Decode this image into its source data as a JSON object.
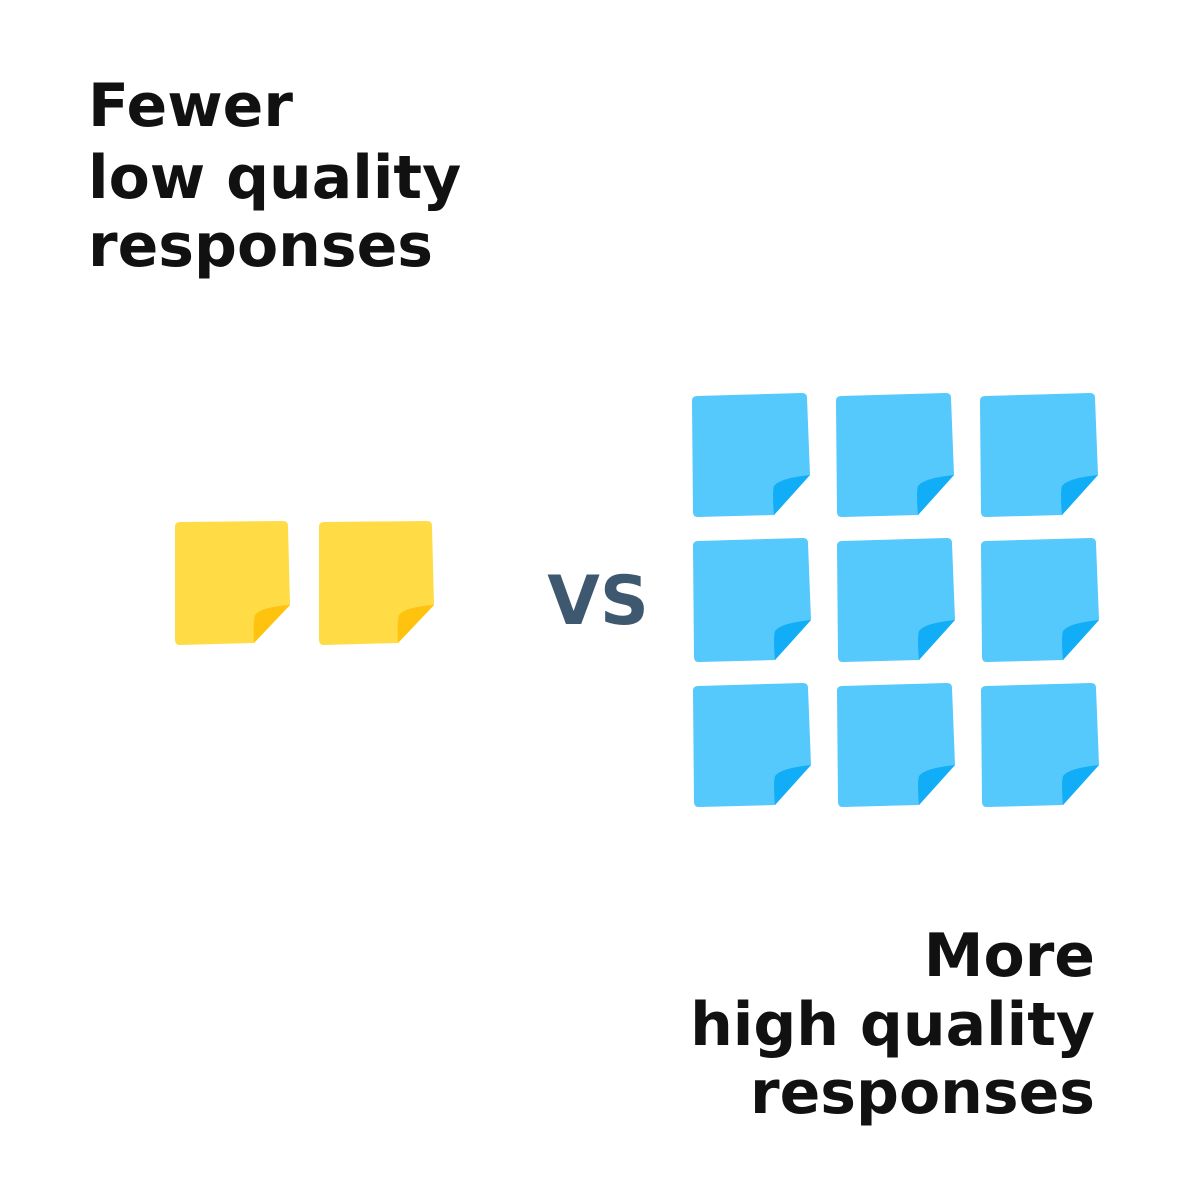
{
  "left_label": {
    "lines": [
      "Fewer",
      "low quality",
      "responses"
    ]
  },
  "separator": "VS",
  "right_label": {
    "lines": [
      "More",
      "high quality",
      "responses"
    ]
  }
}
